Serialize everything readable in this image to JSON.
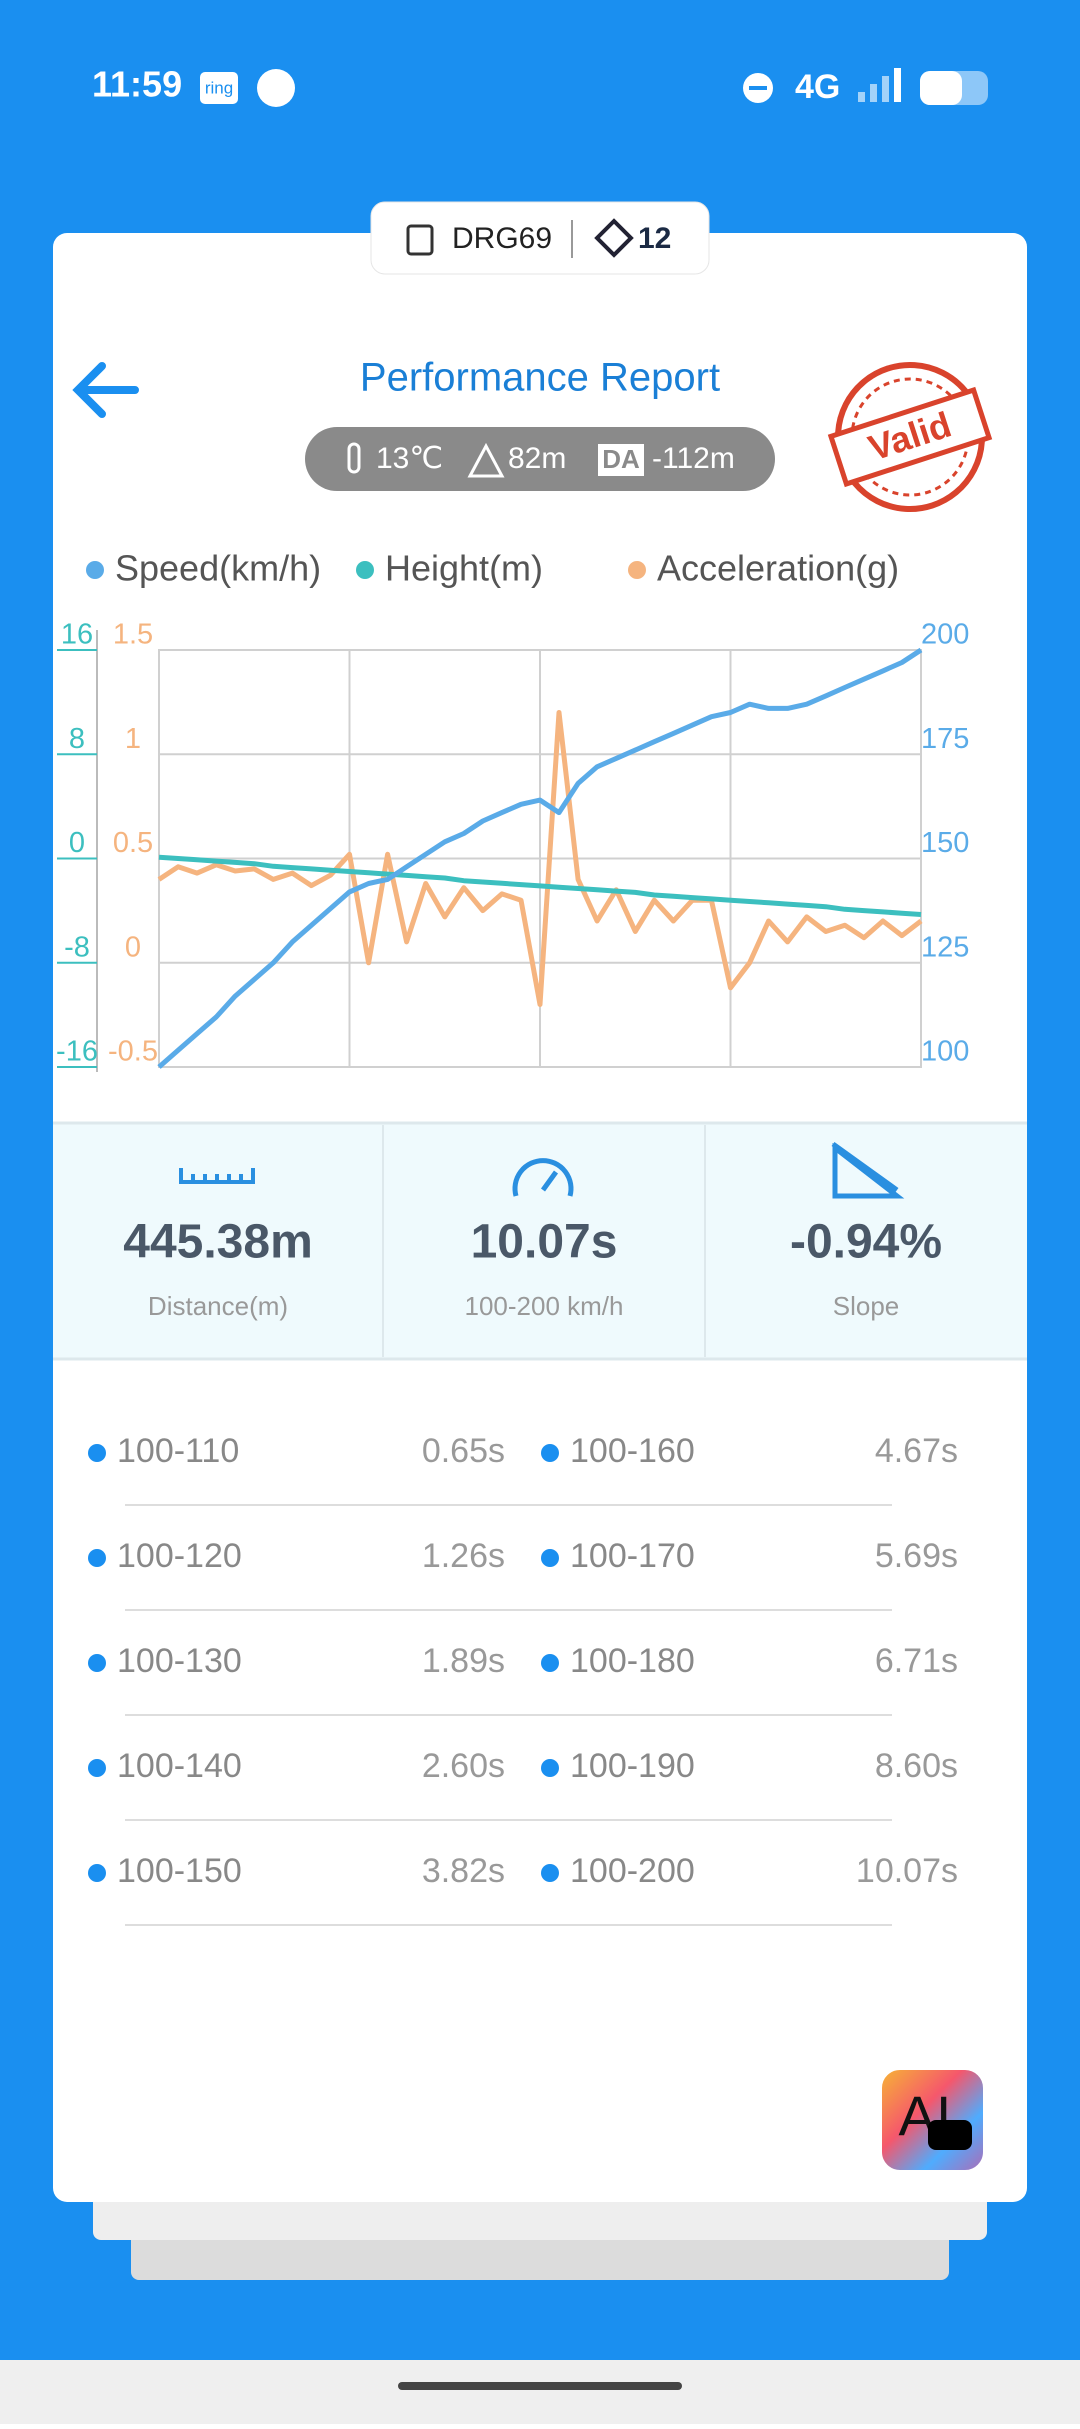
{
  "status_bar": {
    "time": "11:59",
    "app_badge": "ring",
    "network": "4G"
  },
  "header": {
    "device": "DRG69",
    "satellites": "12",
    "title": "Performance Report",
    "temperature": "13℃",
    "altitude": "82m",
    "da_badge": "DA",
    "density_altitude": "-112m",
    "stamp": "Valid"
  },
  "chart_data": {
    "type": "line",
    "x": [
      0,
      1,
      2,
      3,
      4,
      5,
      6,
      7,
      8,
      9,
      10,
      11,
      12,
      13,
      14,
      15,
      16,
      17,
      18,
      19,
      20,
      21,
      22,
      23,
      24,
      25,
      26,
      27,
      28,
      29,
      30,
      31,
      32,
      33,
      34,
      35,
      36,
      37,
      38,
      39,
      40
    ],
    "xlim": [
      0,
      40
    ],
    "ylim": [
      -16,
      16
    ],
    "yticks": [
      16,
      8,
      0,
      -8,
      -16
    ],
    "y2lim": [
      100,
      200
    ],
    "y2ticks": [
      200,
      175,
      150,
      125,
      100
    ],
    "y3lim": [
      -0.5,
      1.5
    ],
    "y3ticks": [
      1.5,
      1,
      0.5,
      0,
      -0.5
    ],
    "grid": true,
    "series": [
      {
        "name": "Speed(km/h)",
        "color": "#5aabe8",
        "axis": "y2",
        "values": [
          100,
          104,
          108,
          112,
          117,
          121,
          125,
          130,
          134,
          138,
          142,
          144,
          145,
          148,
          151,
          154,
          156,
          159,
          161,
          163,
          164,
          161,
          168,
          172,
          174,
          176,
          178,
          180,
          182,
          184,
          185,
          187,
          186,
          186,
          187,
          189,
          191,
          193,
          195,
          197,
          200
        ]
      },
      {
        "name": "Height(m)",
        "color": "#3cbfbf",
        "axis": "y",
        "values": [
          0.1,
          0,
          -0.1,
          -0.2,
          -0.3,
          -0.4,
          -0.6,
          -0.7,
          -0.8,
          -0.9,
          -1.0,
          -1.1,
          -1.2,
          -1.3,
          -1.4,
          -1.5,
          -1.7,
          -1.8,
          -1.9,
          -2.0,
          -2.1,
          -2.2,
          -2.3,
          -2.4,
          -2.5,
          -2.6,
          -2.8,
          -2.9,
          -3.0,
          -3.1,
          -3.2,
          -3.3,
          -3.4,
          -3.5,
          -3.6,
          -3.7,
          -3.9,
          -4.0,
          -4.1,
          -4.2,
          -4.3
        ]
      },
      {
        "name": "Acceleration(g)",
        "color": "#f5b47f",
        "axis": "y3",
        "values": [
          0.4,
          0.46,
          0.43,
          0.47,
          0.44,
          0.45,
          0.4,
          0.43,
          0.37,
          0.42,
          0.52,
          0.0,
          0.52,
          0.1,
          0.38,
          0.22,
          0.36,
          0.25,
          0.33,
          0.3,
          -0.2,
          1.2,
          0.4,
          0.2,
          0.35,
          0.15,
          0.3,
          0.2,
          0.3,
          0.3,
          -0.12,
          0.0,
          0.2,
          0.1,
          0.22,
          0.15,
          0.18,
          0.12,
          0.2,
          0.13,
          0.2
        ]
      }
    ]
  },
  "stats": [
    {
      "value": "445.38m",
      "label": "Distance(m)"
    },
    {
      "value": "10.07s",
      "label": "100-200 km/h"
    },
    {
      "value": "-0.94%",
      "label": "Slope"
    }
  ],
  "splits": [
    {
      "range": "100-110",
      "time": "0.65s"
    },
    {
      "range": "100-160",
      "time": "4.67s"
    },
    {
      "range": "100-120",
      "time": "1.26s"
    },
    {
      "range": "100-170",
      "time": "5.69s"
    },
    {
      "range": "100-130",
      "time": "1.89s"
    },
    {
      "range": "100-180",
      "time": "6.71s"
    },
    {
      "range": "100-140",
      "time": "2.60s"
    },
    {
      "range": "100-190",
      "time": "8.60s"
    },
    {
      "range": "100-150",
      "time": "3.82s"
    },
    {
      "range": "100-200",
      "time": "10.07s"
    }
  ],
  "ai_button": "AI"
}
